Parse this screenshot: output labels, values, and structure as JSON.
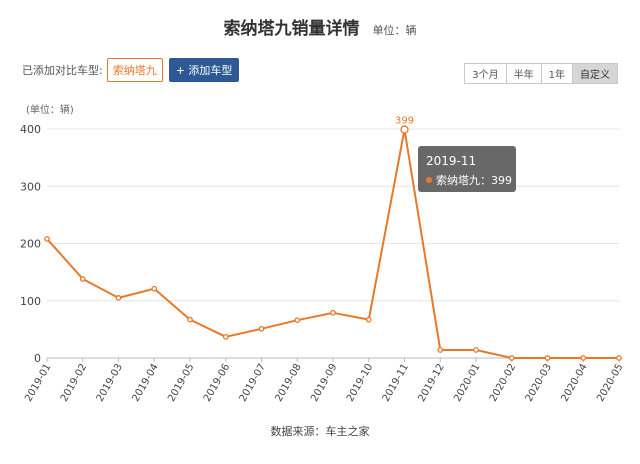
{
  "header": {
    "title": "索纳塔九销量详情",
    "unit": "单位：辆"
  },
  "compare": {
    "label": "已添加对比车型:",
    "chip": "索纳塔九",
    "add_button": "+ 添加车型"
  },
  "range_buttons": [
    "3个月",
    "半年",
    "1年",
    "自定义"
  ],
  "range_active": 3,
  "source": "数据来源：车主之家",
  "tooltip": {
    "title": "2019-11",
    "series": "索纳塔九",
    "value": "399"
  },
  "colors": {
    "line": "#e8782a",
    "tooltip_bg": "#5c5c5c",
    "accent": "#2d5a94"
  },
  "chart_data": {
    "type": "line",
    "ylabel": "(单位：辆)",
    "ylim": [
      0,
      400
    ],
    "yticks": [
      0,
      100,
      200,
      300,
      400
    ],
    "grid": true,
    "categories": [
      "2019-01",
      "2019-02",
      "2019-03",
      "2019-04",
      "2019-05",
      "2019-06",
      "2019-07",
      "2019-08",
      "2019-09",
      "2019-10",
      "2019-11",
      "2019-12",
      "2020-01",
      "2020-02",
      "2020-03",
      "2020-04",
      "2020-05"
    ],
    "series": [
      {
        "name": "索纳塔九",
        "values": [
          208,
          138,
          105,
          121,
          67,
          37,
          51,
          66,
          79,
          67,
          399,
          14,
          14,
          0,
          0,
          0,
          0
        ]
      }
    ],
    "annotation": {
      "index": 10,
      "text": "399"
    }
  }
}
